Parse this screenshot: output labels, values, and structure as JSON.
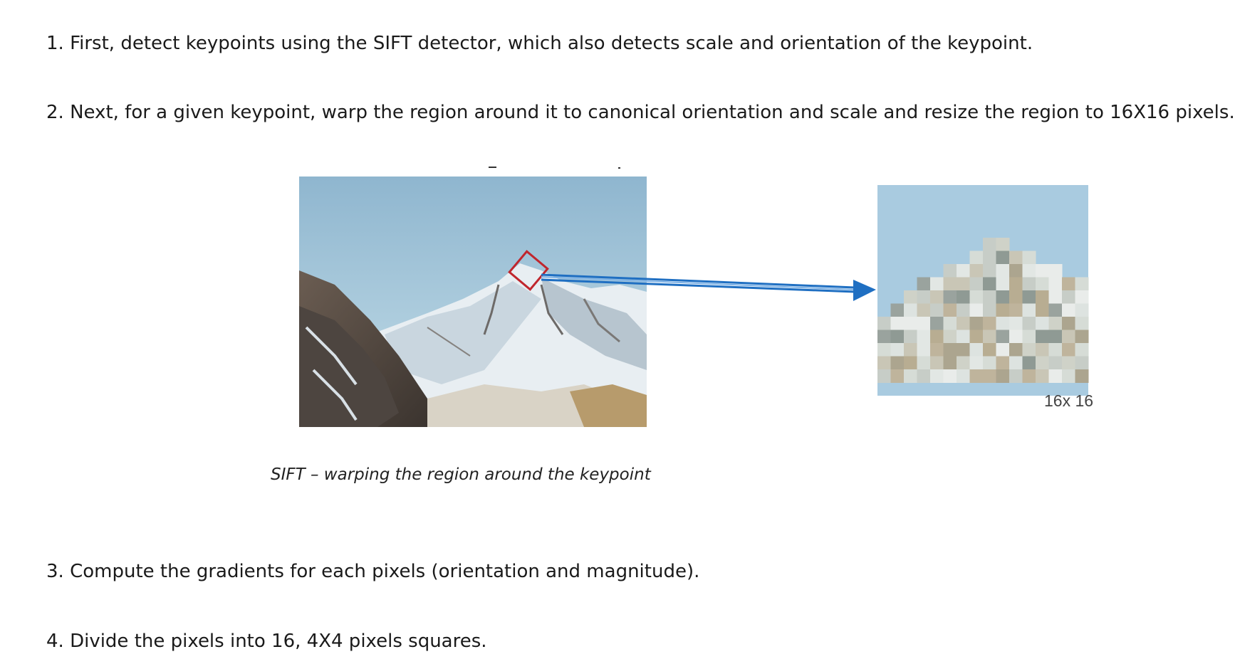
{
  "steps": [
    "1. First, detect keypoints using the SIFT detector, which also detects scale and orientation of the keypoint.",
    "2. Next, for a given keypoint, warp the region around it to canonical orientation and scale and resize the region to 16X16 pixels.",
    "3. Compute the gradients for each pixels (orientation and magnitude).",
    "4. Divide the pixels into 16, 4X4 pixels squares."
  ],
  "figure": {
    "caption": "SIFT – warping the region around the keypoint",
    "patch_size_label": "16x 16",
    "keypoint_box_color": "#c0262d",
    "arrow_color": "#1f6fc2",
    "sky_color": "#a9cbe0"
  }
}
